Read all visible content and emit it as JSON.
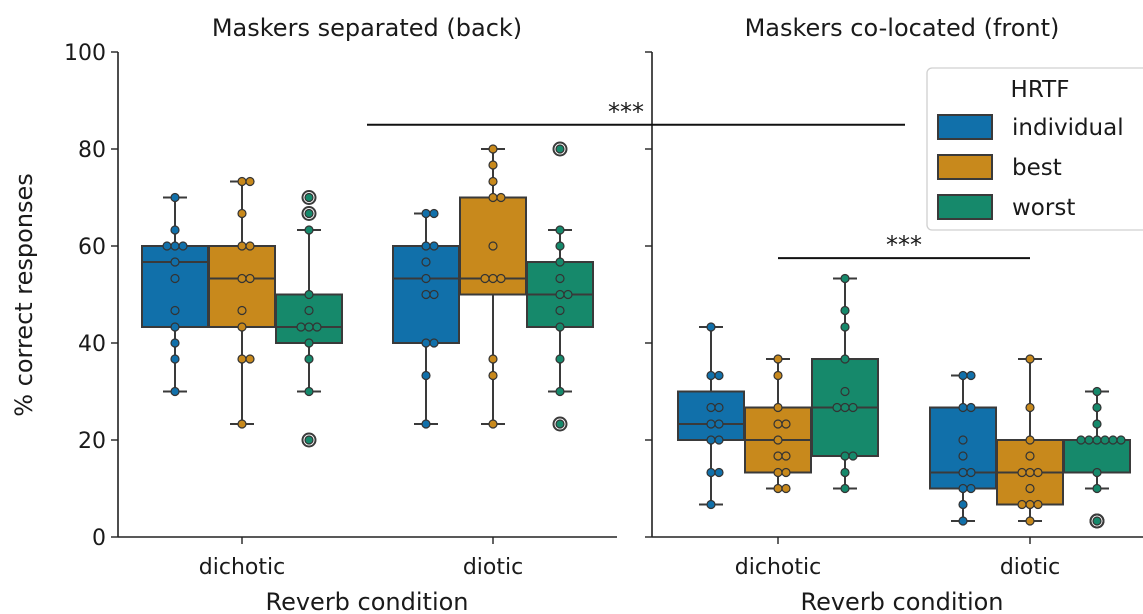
{
  "chart_data": {
    "type": "box",
    "y_label": "% correct responses",
    "ylim": [
      0,
      100
    ],
    "y_ticks": [
      0,
      20,
      40,
      60,
      80,
      100
    ],
    "categories": [
      "dichotic",
      "diotic"
    ],
    "legend": {
      "title": "HRTF",
      "position": "top-right",
      "entries": [
        "individual",
        "best",
        "worst"
      ],
      "colors": [
        "#1170aa",
        "#c8891c",
        "#16896b"
      ]
    },
    "panels": [
      {
        "title": "Maskers separated (back)",
        "x_label": "Reverb condition",
        "groups": [
          {
            "category": "dichotic",
            "boxes": [
              {
                "hrtf": "individual",
                "whislo": 30,
                "q1": 43.3,
                "med": 56.7,
                "q3": 60,
                "whishi": 70,
                "fliers": [],
                "points": [
                  70,
                  63.3,
                  60,
                  60,
                  60,
                  56.7,
                  53.3,
                  46.7,
                  43.3,
                  40,
                  36.7,
                  30
                ]
              },
              {
                "hrtf": "best",
                "whislo": 23.3,
                "q1": 43.3,
                "med": 53.3,
                "q3": 60,
                "whishi": 73.3,
                "fliers": [],
                "points": [
                  73.3,
                  73.3,
                  66.7,
                  60,
                  60,
                  53.3,
                  53.3,
                  46.7,
                  43.3,
                  36.7,
                  36.7,
                  23.3
                ]
              },
              {
                "hrtf": "worst",
                "whislo": 30,
                "q1": 40,
                "med": 43.3,
                "q3": 50,
                "whishi": 63.3,
                "fliers": [
                  70,
                  66.7,
                  20
                ],
                "points": [
                  70,
                  66.7,
                  63.3,
                  50,
                  46.7,
                  43.3,
                  43.3,
                  43.3,
                  40,
                  36.7,
                  30,
                  20
                ]
              }
            ]
          },
          {
            "category": "diotic",
            "boxes": [
              {
                "hrtf": "individual",
                "whislo": 23.3,
                "q1": 40,
                "med": 53.3,
                "q3": 60,
                "whishi": 66.7,
                "fliers": [],
                "points": [
                  66.7,
                  66.7,
                  60,
                  60,
                  56.7,
                  53.3,
                  50,
                  50,
                  40,
                  40,
                  33.3,
                  23.3
                ]
              },
              {
                "hrtf": "best",
                "whislo": 23.3,
                "q1": 50,
                "med": 53.3,
                "q3": 70,
                "whishi": 80,
                "fliers": [],
                "points": [
                  80,
                  76.7,
                  73.3,
                  70,
                  70,
                  60,
                  53.3,
                  53.3,
                  53.3,
                  36.7,
                  33.3,
                  23.3
                ]
              },
              {
                "hrtf": "worst",
                "whislo": 30,
                "q1": 43.3,
                "med": 50,
                "q3": 56.7,
                "whishi": 63.3,
                "fliers": [
                  80,
                  23.3
                ],
                "points": [
                  80,
                  63.3,
                  60,
                  56.7,
                  53.3,
                  50,
                  50,
                  46.7,
                  43.3,
                  36.7,
                  30,
                  23.3
                ]
              }
            ]
          }
        ]
      },
      {
        "title": "Maskers co-located (front)",
        "x_label": "Reverb condition",
        "groups": [
          {
            "category": "dichotic",
            "boxes": [
              {
                "hrtf": "individual",
                "whislo": 6.7,
                "q1": 20,
                "med": 23.3,
                "q3": 30,
                "whishi": 43.3,
                "fliers": [],
                "points": [
                  43.3,
                  33.3,
                  33.3,
                  26.7,
                  26.7,
                  23.3,
                  23.3,
                  20,
                  20,
                  13.3,
                  13.3,
                  6.7
                ]
              },
              {
                "hrtf": "best",
                "whislo": 10,
                "q1": 13.3,
                "med": 20,
                "q3": 26.7,
                "whishi": 36.7,
                "fliers": [],
                "points": [
                  36.7,
                  33.3,
                  26.7,
                  23.3,
                  23.3,
                  20,
                  16.7,
                  16.7,
                  13.3,
                  13.3,
                  10,
                  10
                ]
              },
              {
                "hrtf": "worst",
                "whislo": 10,
                "q1": 16.7,
                "med": 26.7,
                "q3": 36.7,
                "whishi": 53.3,
                "fliers": [],
                "points": [
                  53.3,
                  46.7,
                  43.3,
                  36.7,
                  30,
                  26.7,
                  26.7,
                  26.7,
                  16.7,
                  16.7,
                  13.3,
                  10
                ]
              }
            ]
          },
          {
            "category": "diotic",
            "boxes": [
              {
                "hrtf": "individual",
                "whislo": 3.3,
                "q1": 10,
                "med": 13.3,
                "q3": 26.7,
                "whishi": 33.3,
                "fliers": [],
                "points": [
                  33.3,
                  33.3,
                  26.7,
                  26.7,
                  20,
                  16.7,
                  13.3,
                  13.3,
                  10,
                  10,
                  6.7,
                  3.3
                ]
              },
              {
                "hrtf": "best",
                "whislo": 3.3,
                "q1": 6.7,
                "med": 13.3,
                "q3": 20,
                "whishi": 36.7,
                "fliers": [],
                "points": [
                  36.7,
                  26.7,
                  20,
                  16.7,
                  13.3,
                  13.3,
                  13.3,
                  10,
                  6.7,
                  6.7,
                  6.7,
                  3.3
                ]
              },
              {
                "hrtf": "worst",
                "whislo": 10,
                "q1": 13.3,
                "med": 20,
                "q3": 20,
                "whishi": 30,
                "fliers": [
                  3.3,
                  3.3
                ],
                "points": [
                  30,
                  26.7,
                  23.3,
                  20,
                  20,
                  20,
                  20,
                  20,
                  20,
                  13.3,
                  10,
                  3.3
                ]
              }
            ]
          }
        ]
      }
    ],
    "annotations": [
      {
        "text": "***",
        "y": 85,
        "from": "Maskers separated (back): diotic",
        "to": "Maskers co-located (front): diotic"
      },
      {
        "text": "***",
        "y": 57.5,
        "from": "Maskers co-located (front): dichotic",
        "to": "Maskers co-located (front): diotic"
      }
    ]
  }
}
